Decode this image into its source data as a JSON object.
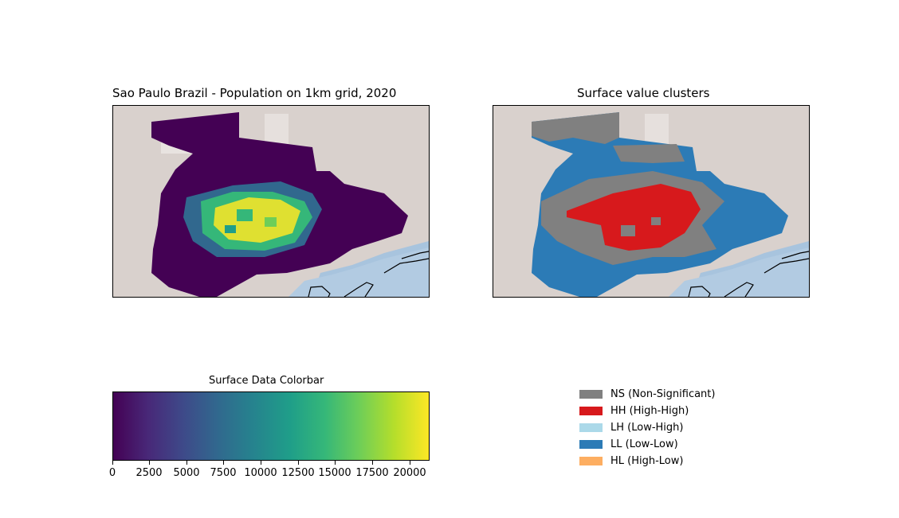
{
  "left_map": {
    "title": "Sao Paulo Brazil - Population on 1km grid, 2020"
  },
  "right_map": {
    "title": "Surface value clusters"
  },
  "colorbar": {
    "title": "Surface Data Colorbar",
    "colormap": "viridis",
    "range": [
      0,
      21300
    ],
    "ticks": [
      "0",
      "2500",
      "5000",
      "7500",
      "10000",
      "12500",
      "15000",
      "17500",
      "20000"
    ]
  },
  "legend": {
    "items": [
      {
        "label": "NS (Non-Significant)",
        "color": "#808080"
      },
      {
        "label": "HH (High-High)",
        "color": "#d7191c"
      },
      {
        "label": "LH (Low-High)",
        "color": "#abd9e9"
      },
      {
        "label": "LL (Low-Low)",
        "color": "#2c7bb6"
      },
      {
        "label": "HL (High-Low)",
        "color": "#fdae61"
      }
    ]
  },
  "colors": {
    "basemap_land": "#d8d0cc",
    "basemap_sea": "#a8c4de",
    "viridis_low": "#440154",
    "viridis_high": "#fde725"
  }
}
